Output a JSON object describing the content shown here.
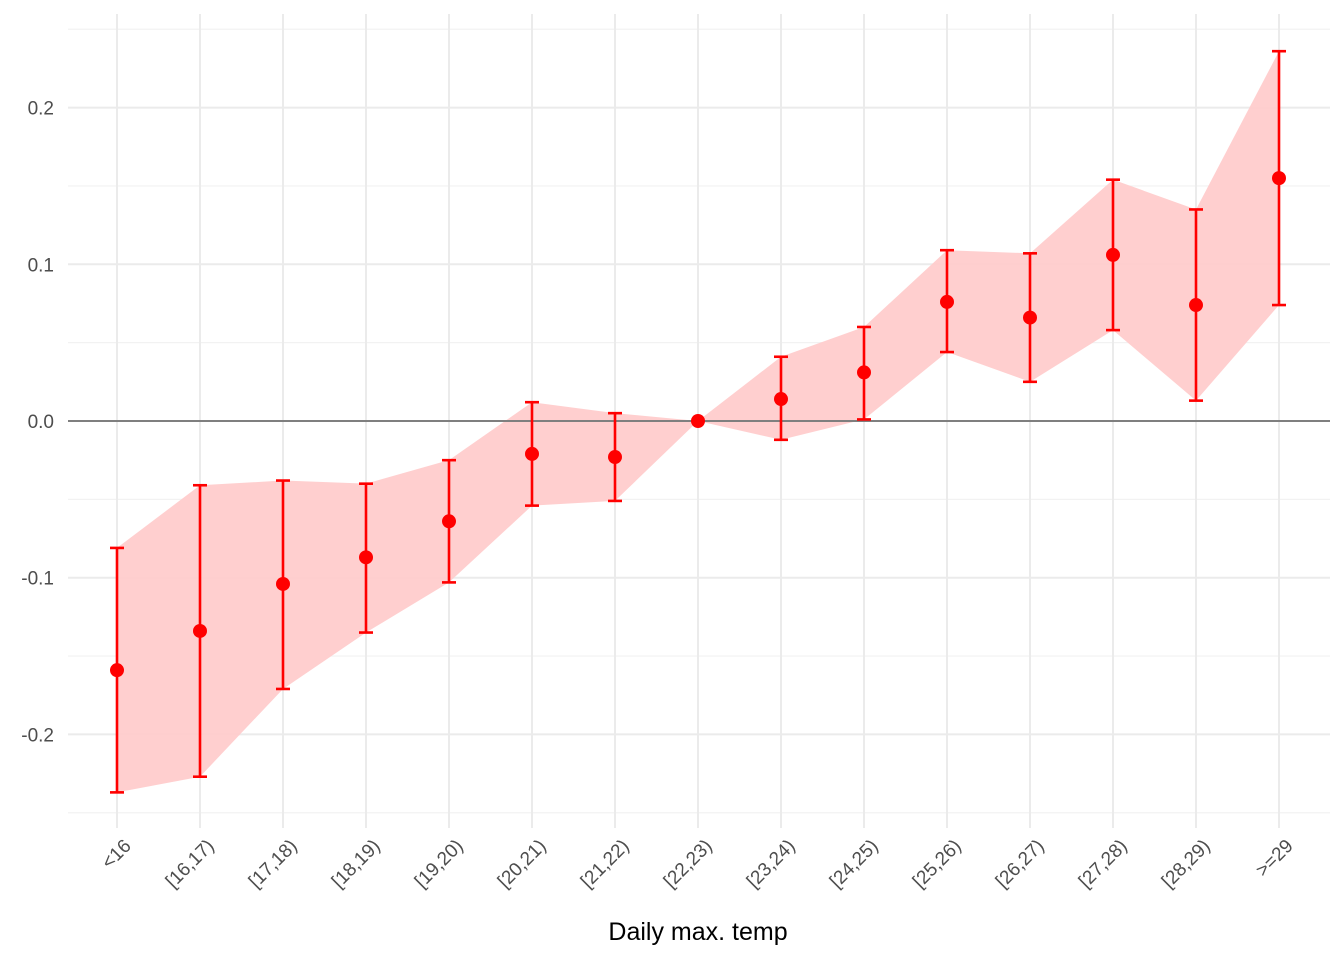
{
  "chart_data": {
    "type": "errorbar",
    "xlabel": "Daily max. temp",
    "ylabel": "",
    "categories": [
      "<16",
      "[16,17)",
      "[17,18)",
      "[18,19)",
      "[19,20)",
      "[20,21)",
      "[21,22)",
      "[22,23)",
      "[23,24)",
      "[24,25)",
      "[25,26)",
      "[26,27)",
      "[27,28)",
      "[28,29)",
      ">=29"
    ],
    "estimate": [
      -0.159,
      -0.134,
      -0.104,
      -0.087,
      -0.064,
      -0.021,
      -0.023,
      0.0,
      0.014,
      0.031,
      0.076,
      0.066,
      0.106,
      0.074,
      0.155
    ],
    "lower": [
      -0.237,
      -0.227,
      -0.171,
      -0.135,
      -0.103,
      -0.054,
      -0.051,
      0.0,
      -0.012,
      0.001,
      0.044,
      0.025,
      0.058,
      0.013,
      0.074
    ],
    "upper": [
      -0.081,
      -0.041,
      -0.038,
      -0.04,
      -0.025,
      0.012,
      0.005,
      0.0,
      0.041,
      0.06,
      0.109,
      0.107,
      0.154,
      0.135,
      0.236
    ],
    "ylim": [
      -0.255,
      0.25
    ],
    "yticks": [
      -0.2,
      -0.1,
      0.0,
      0.1,
      0.2
    ],
    "ytick_labels": [
      "-0.2",
      "-0.1",
      "0.0",
      "0.1",
      "0.2"
    ],
    "reference_line": 0,
    "grid": true,
    "legend": "none",
    "colors": {
      "point": "#ff0000",
      "ribbon": "#ffcccc",
      "reference_line": "#7f7f7f",
      "grid_major": "#ebebeb",
      "grid_minor": "#f2f2f2"
    }
  }
}
